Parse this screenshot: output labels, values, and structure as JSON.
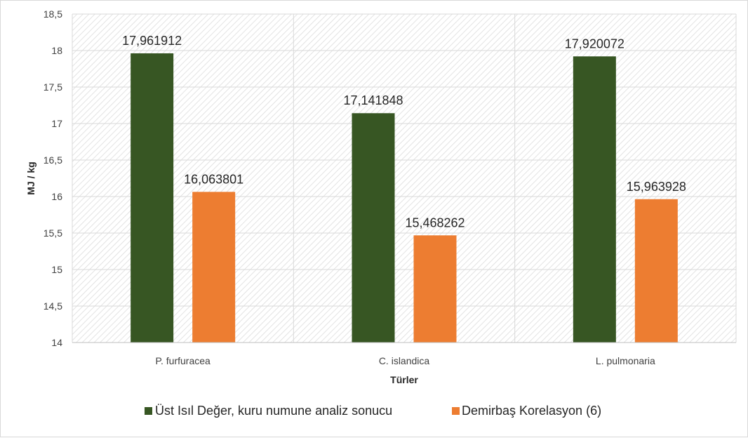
{
  "chart_data": {
    "type": "bar",
    "categories": [
      "P. furfuracea",
      "C. islandica",
      "L. pulmonaria"
    ],
    "series": [
      {
        "name": "Üst Isıl Değer, kuru numune analiz sonucu",
        "values": [
          17.961912,
          17.141848,
          17.920072
        ],
        "labels": [
          "17,961912",
          "17,141848",
          "17,920072"
        ],
        "color": "#375623"
      },
      {
        "name": "Demirbaş Korelasyon (6)",
        "values": [
          16.063801,
          15.468262,
          15.963928
        ],
        "labels": [
          "16,063801",
          "15,468262",
          "15,963928"
        ],
        "color": "#ED7D31"
      }
    ],
    "xlabel": "Türler",
    "ylabel": "MJ / kg",
    "ylim": [
      14,
      18.5
    ],
    "yticks": [
      14,
      14.5,
      15,
      15.5,
      16,
      16.5,
      17,
      17.5,
      18,
      18.5
    ],
    "ytick_labels": [
      "14",
      "14,5",
      "15",
      "15,5",
      "16",
      "16,5",
      "17",
      "17,5",
      "18",
      "18,5"
    ],
    "grid": true,
    "background_pattern": "diagonal-hatch",
    "legend_position": "bottom"
  }
}
